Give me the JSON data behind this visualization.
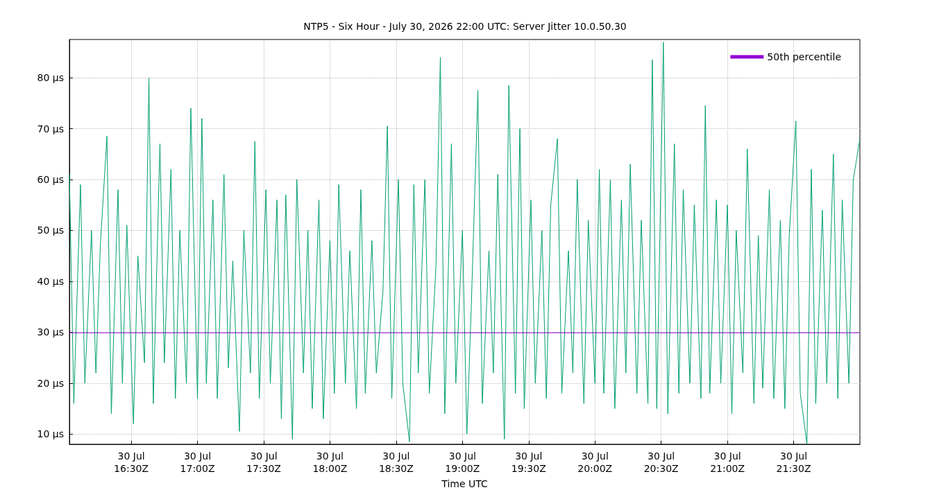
{
  "chart_data": {
    "type": "line",
    "title": "NTP5 - Six Hour - July 30, 2026 22:00 UTC: Server Jitter 10.0.50.30",
    "xlabel": "Time UTC",
    "xlim": [
      "2026-07-30T16:02",
      "2026-07-30T22:00"
    ],
    "xticks": [
      {
        "value": "2026-07-30T16:30",
        "label": "30 Jul\n16:30Z"
      },
      {
        "value": "2026-07-30T17:00",
        "label": "30 Jul\n17:00Z"
      },
      {
        "value": "2026-07-30T17:30",
        "label": "30 Jul\n17:30Z"
      },
      {
        "value": "2026-07-30T18:00",
        "label": "30 Jul\n18:00Z"
      },
      {
        "value": "2026-07-30T18:30",
        "label": "30 Jul\n18:30Z"
      },
      {
        "value": "2026-07-30T19:00",
        "label": "30 Jul\n19:00Z"
      },
      {
        "value": "2026-07-30T19:30",
        "label": "30 Jul\n19:30Z"
      },
      {
        "value": "2026-07-30T20:00",
        "label": "30 Jul\n20:00Z"
      },
      {
        "value": "2026-07-30T20:30",
        "label": "30 Jul\n20:30Z"
      },
      {
        "value": "2026-07-30T21:00",
        "label": "30 Jul\n21:00Z"
      },
      {
        "value": "2026-07-30T21:30",
        "label": "30 Jul\n21:30Z"
      }
    ],
    "ylim": [
      8,
      87.5
    ],
    "yticks": [
      {
        "value": 10,
        "label": "10 µs"
      },
      {
        "value": 20,
        "label": "20 µs"
      },
      {
        "value": 30,
        "label": "30 µs"
      },
      {
        "value": 40,
        "label": "40 µs"
      },
      {
        "value": 50,
        "label": "50 µs"
      },
      {
        "value": 60,
        "label": "60 µs"
      },
      {
        "value": 70,
        "label": "70 µs"
      },
      {
        "value": 80,
        "label": "80 µs"
      }
    ],
    "grid": true,
    "legend": "top right",
    "line_style": "solid",
    "series": [
      {
        "color": "#009e73",
        "x": [
          "2026-07-30T16:02",
          "2026-07-30T16:04",
          "2026-07-30T16:07",
          "2026-07-30T16:09",
          "2026-07-30T16:12",
          "2026-07-30T16:14",
          "2026-07-30T16:16",
          "2026-07-30T16:19",
          "2026-07-30T16:21",
          "2026-07-30T16:24",
          "2026-07-30T16:26",
          "2026-07-30T16:28",
          "2026-07-30T16:31",
          "2026-07-30T16:33",
          "2026-07-30T16:36",
          "2026-07-30T16:38",
          "2026-07-30T16:40",
          "2026-07-30T16:43",
          "2026-07-30T16:45",
          "2026-07-30T16:48",
          "2026-07-30T16:50",
          "2026-07-30T16:52",
          "2026-07-30T16:55",
          "2026-07-30T16:57",
          "2026-07-30T17:00",
          "2026-07-30T17:02",
          "2026-07-30T17:04",
          "2026-07-30T17:07",
          "2026-07-30T17:09",
          "2026-07-30T17:12",
          "2026-07-30T17:14",
          "2026-07-30T17:16",
          "2026-07-30T17:19",
          "2026-07-30T17:21",
          "2026-07-30T17:24",
          "2026-07-30T17:26",
          "2026-07-30T17:28",
          "2026-07-30T17:31",
          "2026-07-30T17:33",
          "2026-07-30T17:36",
          "2026-07-30T17:38",
          "2026-07-30T17:40",
          "2026-07-30T17:43",
          "2026-07-30T17:45",
          "2026-07-30T17:48",
          "2026-07-30T17:50",
          "2026-07-30T17:52",
          "2026-07-30T17:55",
          "2026-07-30T17:57",
          "2026-07-30T18:00",
          "2026-07-30T18:02",
          "2026-07-30T18:04",
          "2026-07-30T18:07",
          "2026-07-30T18:09",
          "2026-07-30T18:12",
          "2026-07-30T18:14",
          "2026-07-30T18:16",
          "2026-07-30T18:19",
          "2026-07-30T18:21",
          "2026-07-30T18:24",
          "2026-07-30T18:26",
          "2026-07-30T18:28",
          "2026-07-30T18:31",
          "2026-07-30T18:33",
          "2026-07-30T18:36",
          "2026-07-30T18:38",
          "2026-07-30T18:40",
          "2026-07-30T18:43",
          "2026-07-30T18:45",
          "2026-07-30T18:48",
          "2026-07-30T18:50",
          "2026-07-30T18:52",
          "2026-07-30T18:55",
          "2026-07-30T18:57",
          "2026-07-30T19:00",
          "2026-07-30T19:02",
          "2026-07-30T19:04",
          "2026-07-30T19:07",
          "2026-07-30T19:09",
          "2026-07-30T19:12",
          "2026-07-30T19:14",
          "2026-07-30T19:16",
          "2026-07-30T19:19",
          "2026-07-30T19:21",
          "2026-07-30T19:24",
          "2026-07-30T19:26",
          "2026-07-30T19:28",
          "2026-07-30T19:31",
          "2026-07-30T19:33",
          "2026-07-30T19:36",
          "2026-07-30T19:38",
          "2026-07-30T19:40",
          "2026-07-30T19:43",
          "2026-07-30T19:45",
          "2026-07-30T19:48",
          "2026-07-30T19:50",
          "2026-07-30T19:52",
          "2026-07-30T19:55",
          "2026-07-30T19:57",
          "2026-07-30T20:00",
          "2026-07-30T20:02",
          "2026-07-30T20:04",
          "2026-07-30T20:07",
          "2026-07-30T20:09",
          "2026-07-30T20:12",
          "2026-07-30T20:14",
          "2026-07-30T20:16",
          "2026-07-30T20:19",
          "2026-07-30T20:21",
          "2026-07-30T20:24",
          "2026-07-30T20:26",
          "2026-07-30T20:28",
          "2026-07-30T20:31",
          "2026-07-30T20:33",
          "2026-07-30T20:36",
          "2026-07-30T20:38",
          "2026-07-30T20:40",
          "2026-07-30T20:43",
          "2026-07-30T20:45",
          "2026-07-30T20:48",
          "2026-07-30T20:50",
          "2026-07-30T20:52",
          "2026-07-30T20:55",
          "2026-07-30T20:57",
          "2026-07-30T21:00",
          "2026-07-30T21:02",
          "2026-07-30T21:04",
          "2026-07-30T21:07",
          "2026-07-30T21:09",
          "2026-07-30T21:12",
          "2026-07-30T21:14",
          "2026-07-30T21:16",
          "2026-07-30T21:19",
          "2026-07-30T21:21",
          "2026-07-30T21:24",
          "2026-07-30T21:26",
          "2026-07-30T21:28",
          "2026-07-30T21:31",
          "2026-07-30T21:33",
          "2026-07-30T21:36",
          "2026-07-30T21:38",
          "2026-07-30T21:40",
          "2026-07-30T21:43",
          "2026-07-30T21:45",
          "2026-07-30T21:48",
          "2026-07-30T21:50",
          "2026-07-30T21:52",
          "2026-07-30T21:55",
          "2026-07-30T21:57",
          "2026-07-30T22:00"
        ],
        "values": [
          61,
          16,
          59,
          20,
          50,
          22,
          47,
          68.5,
          14,
          58,
          20,
          51,
          12,
          45,
          24,
          80,
          16,
          67,
          24,
          62,
          17,
          50,
          20,
          74,
          17,
          72,
          20,
          56,
          17,
          61,
          23,
          44,
          10.5,
          50,
          22,
          67.5,
          17,
          58,
          20,
          56,
          13,
          57,
          9,
          60,
          22,
          50,
          15,
          56,
          13,
          48,
          18,
          59,
          20,
          46,
          15,
          58,
          18,
          48,
          22,
          38,
          70.5,
          17,
          60,
          20,
          8.5,
          59,
          22,
          60,
          18,
          43,
          84,
          14,
          67,
          20,
          50,
          10,
          35,
          77.5,
          16,
          46,
          22,
          61,
          9,
          78.5,
          18,
          70,
          15,
          56,
          20,
          50,
          17,
          55,
          68,
          18,
          46,
          22,
          60,
          16,
          52,
          20,
          62,
          18,
          60,
          15,
          56,
          22,
          63,
          18,
          52,
          16,
          83.5,
          15,
          87,
          14,
          67,
          18,
          58,
          20,
          55,
          17,
          74.5,
          18,
          56,
          20,
          55,
          14,
          50,
          22,
          66,
          16,
          49,
          19,
          58,
          17,
          52,
          15,
          49,
          71.5,
          18,
          8,
          62,
          16,
          54,
          20,
          65,
          17,
          56,
          20,
          60,
          68
        ]
      },
      {
        "name": "50th percentile",
        "color": "#9400d3",
        "x": [
          "2026-07-30T16:02",
          "2026-07-30T22:00"
        ],
        "values": [
          29.9,
          29.9
        ]
      }
    ]
  }
}
